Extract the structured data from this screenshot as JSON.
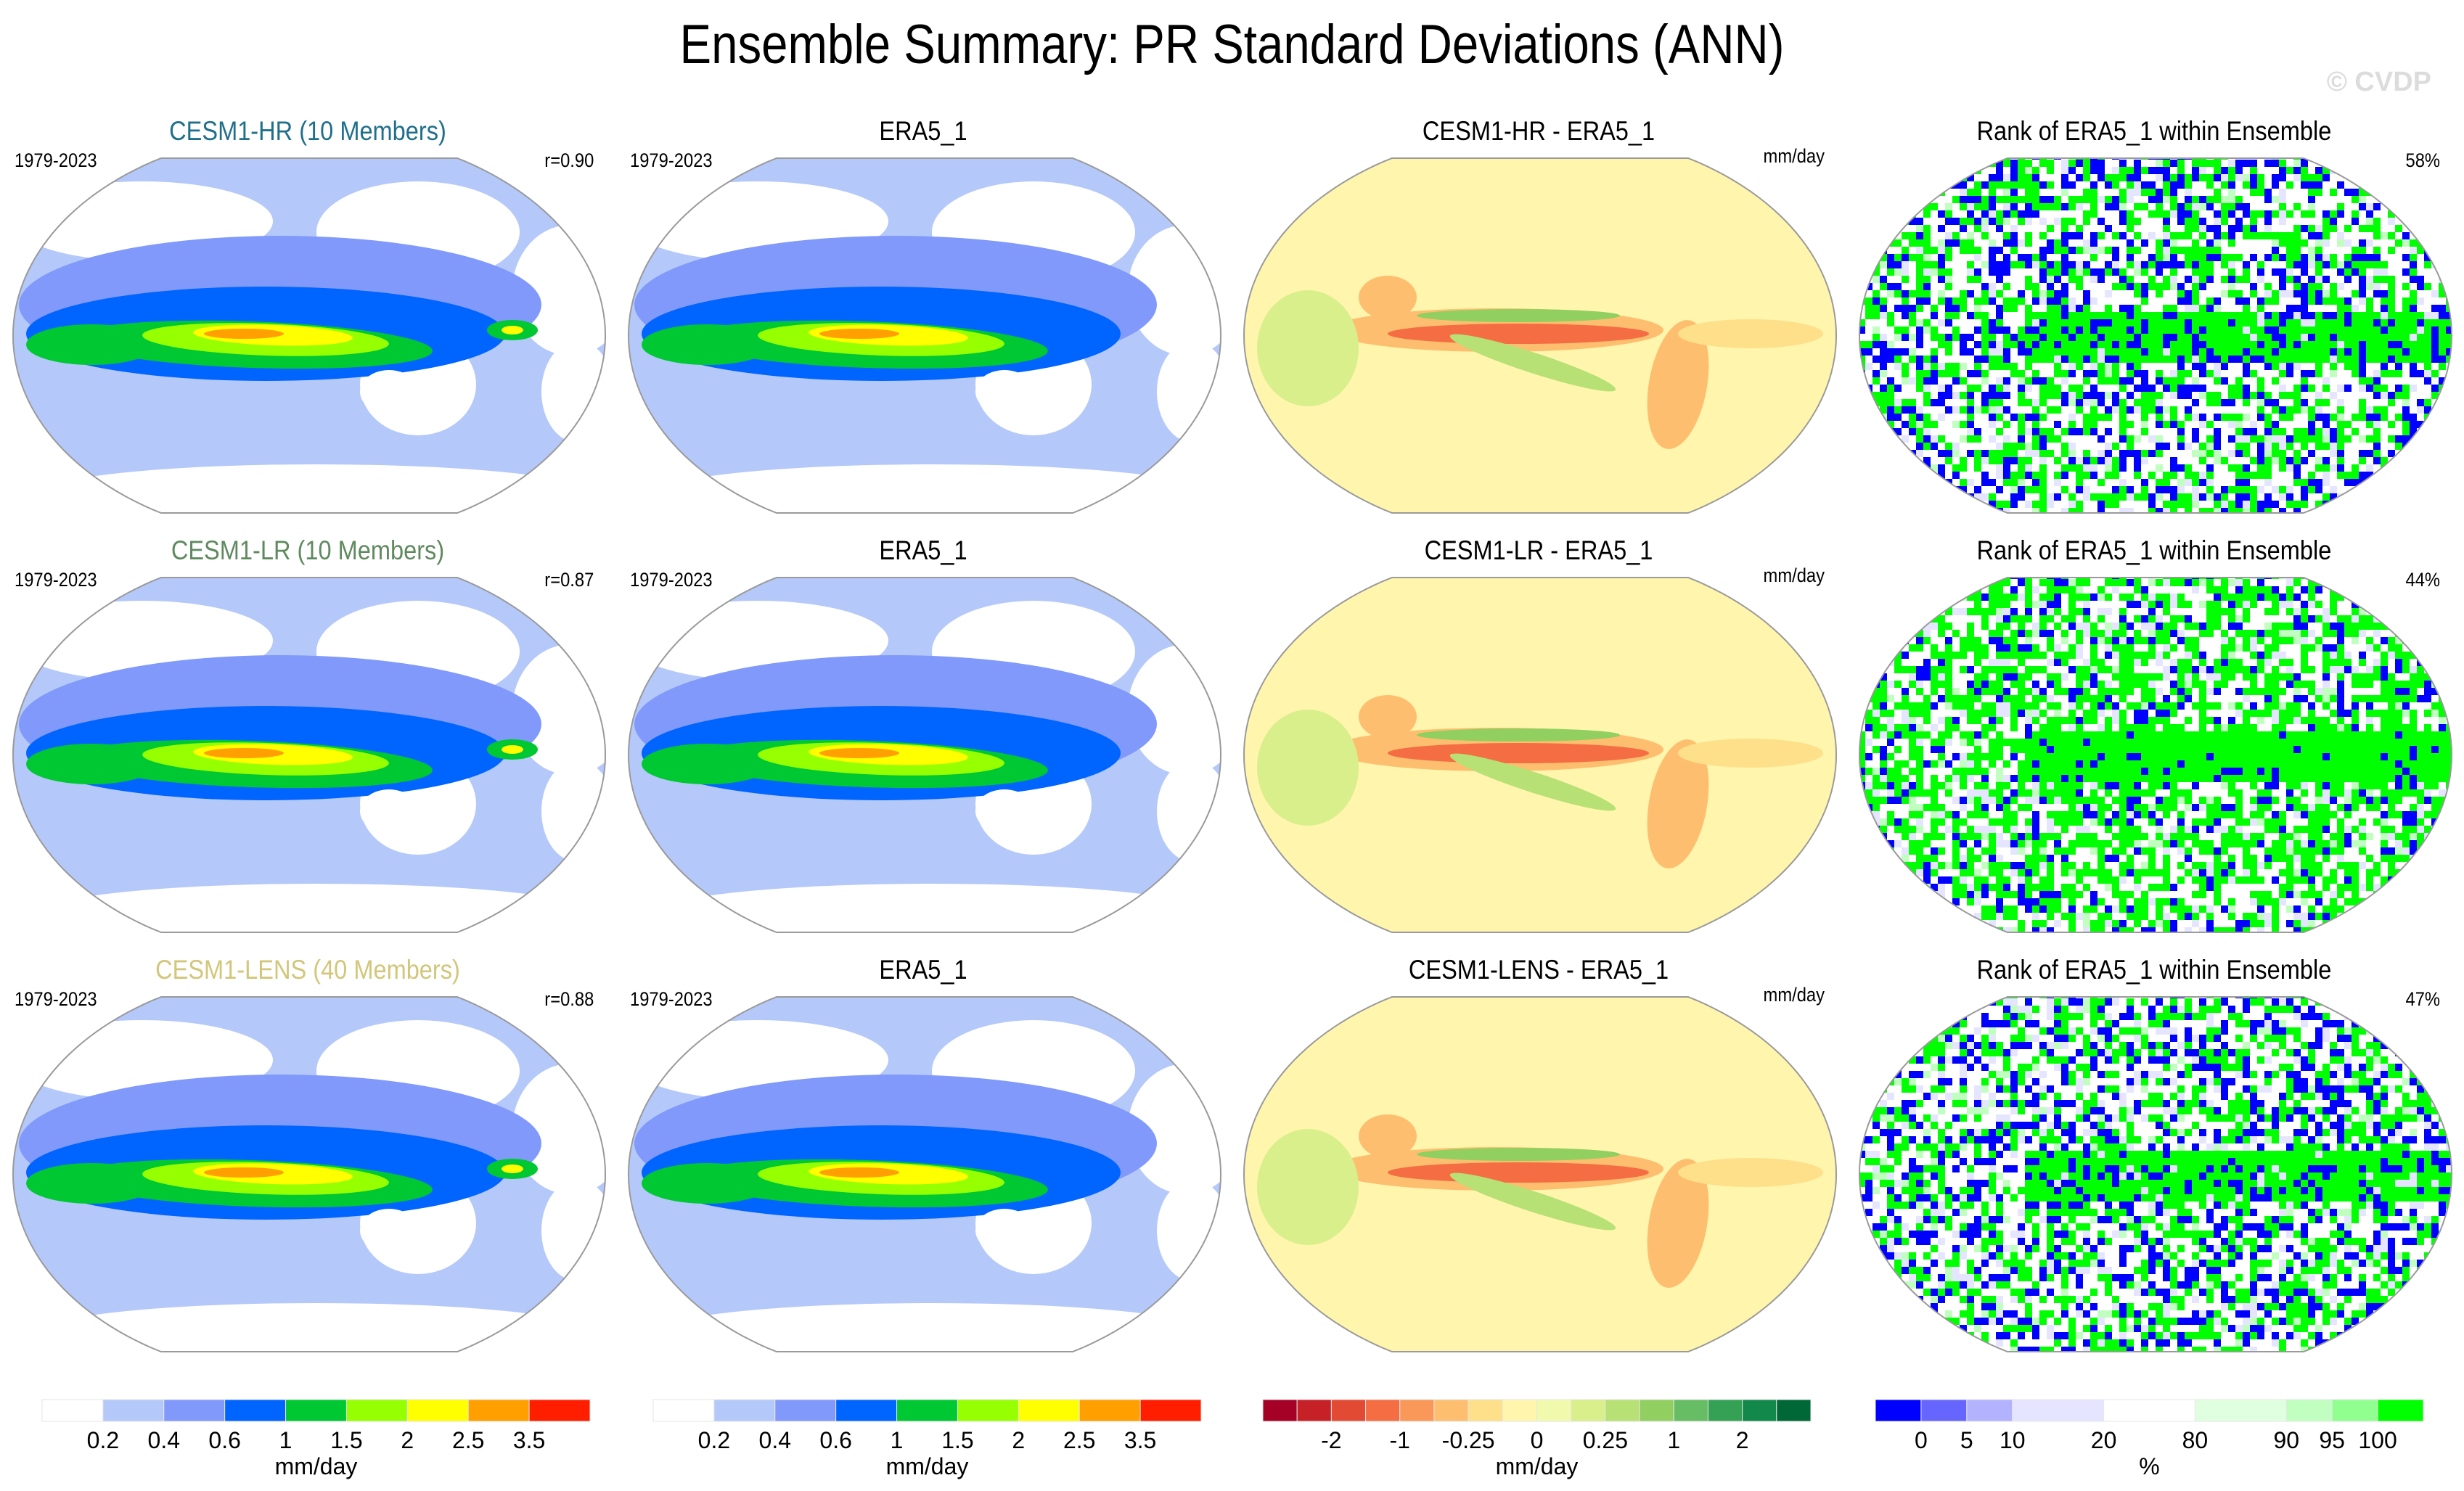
{
  "figure": {
    "title": "Ensemble Summary: PR Standard Deviations (ANN)",
    "watermark": "© CVDP"
  },
  "chart_data": [
    {
      "type": "heatmap",
      "projection": "robinson-like global map (Pacific-centered)",
      "rows": [
        {
          "ensemble": "CESM1-HR (10 Members)",
          "ensemble_color": "#1f6f8b",
          "period": "1979-2023",
          "pattern_correlation": "r=0.90",
          "obs_title": "ERA5_1",
          "obs_period": "1979-2023",
          "diff_title": "CESM1-HR - ERA5_1",
          "diff_units": "mm/day",
          "rank_title": "Rank of ERA5_1 within Ensemble",
          "rank_percent": "58%"
        },
        {
          "ensemble": "CESM1-LR (10 Members)",
          "ensemble_color": "#5f8a5f",
          "period": "1979-2023",
          "pattern_correlation": "r=0.87",
          "obs_title": "ERA5_1",
          "obs_period": "1979-2023",
          "diff_title": "CESM1-LR - ERA5_1",
          "diff_units": "mm/day",
          "rank_title": "Rank of ERA5_1 within Ensemble",
          "rank_percent": "44%"
        },
        {
          "ensemble": "CESM1-LENS (40 Members)",
          "ensemble_color": "#d2c67a",
          "period": "1979-2023",
          "pattern_correlation": "r=0.88",
          "obs_title": "ERA5_1",
          "obs_period": "1979-2023",
          "diff_title": "CESM1-LENS - ERA5_1",
          "diff_units": "mm/day",
          "rank_title": "Rank of ERA5_1 within Ensemble",
          "rank_percent": "47%"
        }
      ],
      "colorbars": [
        {
          "name": "std-dev",
          "labels": [
            "0.2",
            "0.4",
            "0.6",
            "1",
            "1.5",
            "2",
            "2.5",
            "3.5"
          ],
          "colors": [
            "#ffffff",
            "#b4c8fa",
            "#8099fa",
            "#0064ff",
            "#00c832",
            "#96ff00",
            "#ffff00",
            "#ffa000",
            "#ff1e00"
          ],
          "units": "mm/day"
        },
        {
          "name": "std-dev-obs",
          "labels": [
            "0.2",
            "0.4",
            "0.6",
            "1",
            "1.5",
            "2",
            "2.5",
            "3.5"
          ],
          "colors": [
            "#ffffff",
            "#b4c8fa",
            "#8099fa",
            "#0064ff",
            "#00c832",
            "#96ff00",
            "#ffff00",
            "#ffa000",
            "#ff1e00"
          ],
          "units": "mm/day"
        },
        {
          "name": "difference",
          "labels": [
            "-2",
            "-1",
            "-0.25",
            "0",
            "0.25",
            "1",
            "2"
          ],
          "label_positions": [
            2,
            4,
            6,
            8,
            10,
            12,
            14
          ],
          "colors": [
            "#a50026",
            "#c62127",
            "#e34a33",
            "#f46d43",
            "#f99858",
            "#fdbf6f",
            "#fee08b",
            "#fff5ad",
            "#f1f9ac",
            "#d9ef8b",
            "#b7e075",
            "#91cf60",
            "#66bd63",
            "#35a155",
            "#12884a",
            "#006837"
          ],
          "units": "mm/day"
        },
        {
          "name": "rank",
          "labels": [
            "0",
            "5",
            "10",
            "20",
            "80",
            "90",
            "95",
            "100"
          ],
          "colors": [
            "#0000ff",
            "#6666ff",
            "#b2b2ff",
            "#e5e5ff",
            "#ffffff",
            "#e0ffe0",
            "#c0ffc0",
            "#90ff90",
            "#00ff00"
          ],
          "widths": [
            1,
            1,
            1,
            2,
            2,
            2,
            1,
            1,
            1
          ],
          "units": "%"
        }
      ]
    }
  ]
}
